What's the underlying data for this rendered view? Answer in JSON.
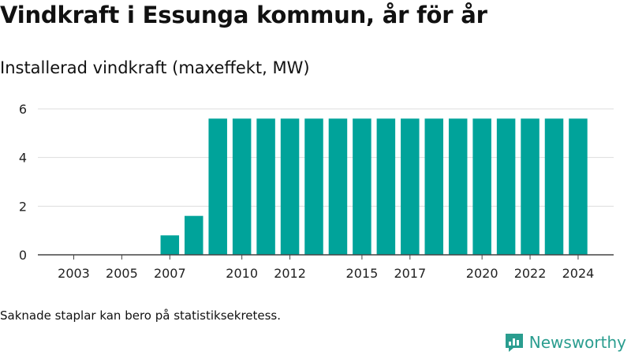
{
  "title": "Vindkraft i Essunga kommun, år för år",
  "subtitle": "Installerad vindkraft (maxeffekt, MW)",
  "footnote": "Saknade staplar kan bero på statistiksekretess.",
  "brand": {
    "name": "Newsworthy",
    "color": "#2a9d8f"
  },
  "chart_data": {
    "type": "bar",
    "categories": [
      2003,
      2004,
      2005,
      2006,
      2007,
      2008,
      2009,
      2010,
      2011,
      2012,
      2013,
      2014,
      2015,
      2016,
      2017,
      2018,
      2019,
      2020,
      2021,
      2022,
      2023,
      2024
    ],
    "values": [
      0,
      0,
      0,
      0,
      0.8,
      1.6,
      5.6,
      5.6,
      5.6,
      5.6,
      5.6,
      5.6,
      5.6,
      5.6,
      5.6,
      5.6,
      5.6,
      5.6,
      5.6,
      5.6,
      5.6,
      5.6
    ],
    "x_tick_labels": [
      "2003",
      "2005",
      "2007",
      "2010",
      "2012",
      "2015",
      "2017",
      "2020",
      "2022",
      "2024"
    ],
    "y_ticks": [
      0,
      2,
      4,
      6
    ],
    "ylim": [
      0,
      6.5
    ],
    "bar_color": "#00a39a",
    "grid": true
  }
}
